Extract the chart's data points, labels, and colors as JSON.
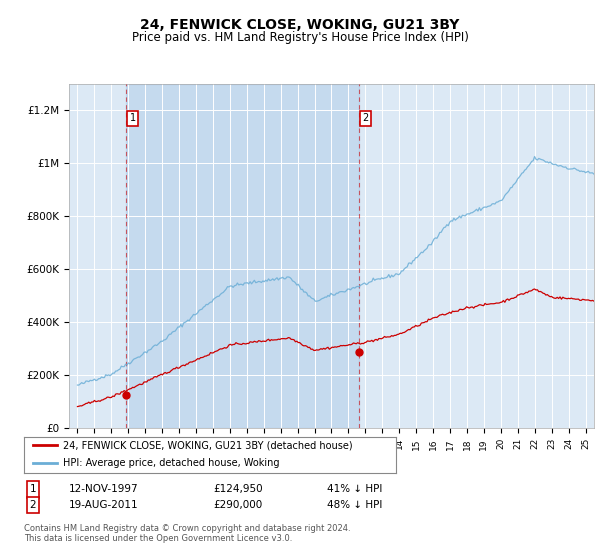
{
  "title": "24, FENWICK CLOSE, WOKING, GU21 3BY",
  "subtitle": "Price paid vs. HM Land Registry's House Price Index (HPI)",
  "plot_bg_color": "#dce9f5",
  "ylim": [
    0,
    1300000
  ],
  "yticks": [
    0,
    200000,
    400000,
    600000,
    800000,
    1000000,
    1200000
  ],
  "ytick_labels": [
    "£0",
    "£200K",
    "£400K",
    "£600K",
    "£800K",
    "£1M",
    "£1.2M"
  ],
  "hpi_color": "#6baed6",
  "price_color": "#cc0000",
  "sale1_date_label": "12-NOV-1997",
  "sale1_price": 124950,
  "sale1_year": 1997.87,
  "sale1_hpi_pct": "41% ↓ HPI",
  "sale2_date_label": "19-AUG-2011",
  "sale2_price": 290000,
  "sale2_year": 2011.63,
  "sale2_hpi_pct": "48% ↓ HPI",
  "legend_label1": "24, FENWICK CLOSE, WOKING, GU21 3BY (detached house)",
  "legend_label2": "HPI: Average price, detached house, Woking",
  "footer": "Contains HM Land Registry data © Crown copyright and database right 2024.\nThis data is licensed under the Open Government Licence v3.0.",
  "xmin": 1994.5,
  "xmax": 2025.5
}
